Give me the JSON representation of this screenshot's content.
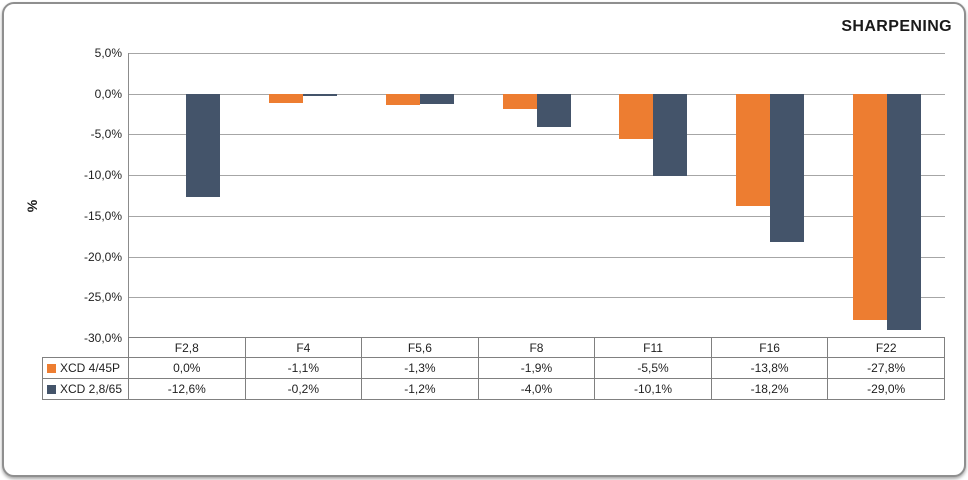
{
  "header": {
    "title": "SHARPENING"
  },
  "colors": {
    "series_orange": "#ED7D31",
    "series_slate": "#44546A",
    "gridline": "#A6A6A6",
    "axis": "#8C8C8C",
    "table_border": "#808080",
    "card_border": "#8F8F8F"
  },
  "chart_data": {
    "type": "bar",
    "title": "SHARPENING",
    "xlabel": "",
    "ylabel": "%",
    "categories": [
      "F2,8",
      "F4",
      "F5,6",
      "F8",
      "F11",
      "F16",
      "F22"
    ],
    "series": [
      {
        "name": "XCD 4/45P",
        "color": "#ED7D31",
        "values": [
          0.0,
          -1.1,
          -1.3,
          -1.9,
          -5.5,
          -13.8,
          -27.8
        ],
        "labels": [
          "0,0%",
          "-1,1%",
          "-1,3%",
          "-1,9%",
          "-5,5%",
          "-13,8%",
          "-27,8%"
        ]
      },
      {
        "name": "XCD 2,8/65",
        "color": "#44546A",
        "values": [
          -12.6,
          -0.2,
          -1.2,
          -4.0,
          -10.1,
          -18.2,
          -29.0
        ],
        "labels": [
          "-12,6%",
          "-0,2%",
          "-1,2%",
          "-4,0%",
          "-10,1%",
          "-18,2%",
          "-29,0%"
        ]
      }
    ],
    "ylim": [
      -30,
      5
    ],
    "y_step": 5,
    "y_tick_labels": [
      "5,0%",
      "0,0%",
      "-5,0%",
      "-10,0%",
      "-15,0%",
      "-20,0%",
      "-25,0%",
      "-30,0%"
    ],
    "grid": true,
    "legend_position": "table-left"
  }
}
